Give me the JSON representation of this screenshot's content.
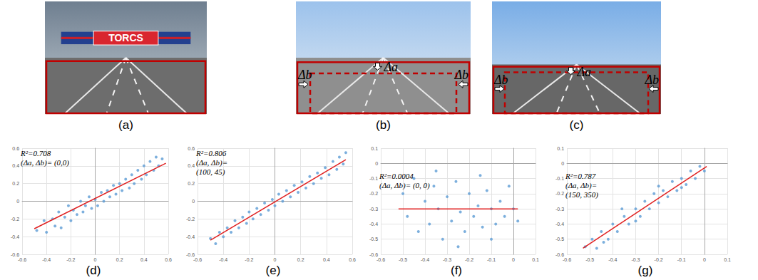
{
  "images": [
    {
      "caption": "(a)",
      "texts": [
        "TORCS"
      ]
    },
    {
      "caption": "(b)",
      "texts": [
        "Δa",
        "Δb",
        "Δb"
      ]
    },
    {
      "caption": "(c)",
      "texts": [
        "Δa",
        "Δb",
        "Δb"
      ]
    }
  ],
  "chart_data": [
    {
      "type": "scatter",
      "caption": "(d)",
      "annotations": [
        "R²=0.708",
        "(Δa, Δb)= (0,0)"
      ],
      "xlim": [
        -0.6,
        0.6
      ],
      "xticks": [
        -0.6,
        -0.4,
        -0.2,
        0,
        0.2,
        0.4,
        0.6
      ],
      "ylim": [
        -0.6,
        0.6
      ],
      "yticks": [
        -0.6,
        -0.4,
        -0.2,
        0,
        0.2,
        0.4,
        0.6
      ],
      "grid": true,
      "series": [
        {
          "type": "scatter",
          "color": "#5b9bd5",
          "marker": "circle",
          "x": [
            -0.48,
            -0.42,
            -0.4,
            -0.35,
            -0.33,
            -0.3,
            -0.28,
            -0.25,
            -0.22,
            -0.2,
            -0.18,
            -0.15,
            -0.12,
            -0.1,
            -0.08,
            -0.05,
            -0.03,
            0,
            0.02,
            0.05,
            0.07,
            0.1,
            0.12,
            0.15,
            0.17,
            0.2,
            0.22,
            0.25,
            0.28,
            0.3,
            0.32,
            0.35,
            0.38,
            0.4,
            0.42,
            0.45,
            0.48,
            0.5,
            0.52,
            0.55
          ],
          "values": [
            -0.33,
            -0.22,
            -0.35,
            -0.2,
            -0.28,
            -0.12,
            -0.3,
            -0.18,
            -0.05,
            -0.22,
            -0.1,
            -0.15,
            0,
            -0.12,
            -0.05,
            0.05,
            -0.08,
            0.02,
            -0.05,
            0.1,
            0,
            0.12,
            0.05,
            0.18,
            0.08,
            0.2,
            0.12,
            0.25,
            0.15,
            0.3,
            0.2,
            0.35,
            0.25,
            0.4,
            0.3,
            0.45,
            0.35,
            0.5,
            0.4,
            0.48
          ]
        },
        {
          "type": "line",
          "color": "#e02020",
          "line_style": "solid",
          "x": [
            -0.5,
            0.58
          ],
          "values": [
            -0.31,
            0.43
          ]
        }
      ]
    },
    {
      "type": "scatter",
      "caption": "(e)",
      "annotations": [
        "R²=0.806",
        "(Δa, Δb)=",
        "(100, 45)"
      ],
      "xlim": [
        -0.6,
        0.6
      ],
      "xticks": [
        -0.6,
        -0.4,
        -0.2,
        0,
        0.2,
        0.4,
        0.6
      ],
      "ylim": [
        -0.6,
        0.6
      ],
      "yticks": [
        -0.6,
        -0.4,
        -0.2,
        0,
        0.2,
        0.4,
        0.6
      ],
      "grid": true,
      "series": [
        {
          "type": "scatter",
          "color": "#5b9bd5",
          "marker": "circle",
          "x": [
            -0.5,
            -0.46,
            -0.43,
            -0.4,
            -0.37,
            -0.34,
            -0.31,
            -0.28,
            -0.25,
            -0.22,
            -0.2,
            -0.17,
            -0.14,
            -0.11,
            -0.08,
            -0.05,
            -0.02,
            0,
            0.03,
            0.06,
            0.09,
            0.12,
            0.15,
            0.18,
            0.21,
            0.24,
            0.27,
            0.3,
            0.33,
            0.36,
            0.39,
            0.42,
            0.45,
            0.48,
            0.5,
            0.53,
            0.55
          ],
          "values": [
            -0.42,
            -0.48,
            -0.35,
            -0.4,
            -0.3,
            -0.35,
            -0.22,
            -0.3,
            -0.18,
            -0.25,
            -0.12,
            -0.2,
            -0.08,
            -0.15,
            -0.02,
            -0.1,
            0.02,
            -0.05,
            0.08,
            0,
            0.12,
            0.05,
            0.18,
            0.1,
            0.22,
            0.15,
            0.28,
            0.2,
            0.32,
            0.26,
            0.38,
            0.3,
            0.45,
            0.36,
            0.5,
            0.42,
            0.55
          ]
        },
        {
          "type": "line",
          "color": "#e02020",
          "line_style": "solid",
          "x": [
            -0.5,
            0.55
          ],
          "values": [
            -0.44,
            0.47
          ]
        }
      ]
    },
    {
      "type": "scatter",
      "caption": "(f)",
      "annotations": [
        "R²=0.0004",
        "(Δa, Δb)= (0, 0)"
      ],
      "xlim": [
        -0.6,
        0.1
      ],
      "xticks": [
        -0.6,
        -0.5,
        -0.4,
        -0.3,
        -0.2,
        -0.1,
        0,
        0.1
      ],
      "ylim": [
        -0.6,
        0.1
      ],
      "yticks": [
        -0.6,
        -0.5,
        -0.4,
        -0.3,
        -0.2,
        -0.1,
        0,
        0.1
      ],
      "grid": true,
      "series": [
        {
          "type": "scatter",
          "color": "#5b9bd5",
          "marker": "circle",
          "x": [
            -0.5,
            -0.48,
            -0.45,
            -0.43,
            -0.4,
            -0.38,
            -0.36,
            -0.34,
            -0.32,
            -0.3,
            -0.28,
            -0.26,
            -0.24,
            -0.22,
            -0.2,
            -0.18,
            -0.16,
            -0.14,
            -0.12,
            -0.1,
            -0.08,
            -0.06,
            -0.04,
            -0.02,
            0,
            0.02,
            -0.25,
            -0.15,
            -0.35,
            -0.1
          ],
          "values": [
            -0.2,
            -0.35,
            -0.1,
            -0.45,
            -0.25,
            -0.4,
            -0.15,
            -0.3,
            -0.5,
            -0.22,
            -0.38,
            -0.12,
            -0.32,
            -0.45,
            -0.2,
            -0.35,
            -0.28,
            -0.42,
            -0.18,
            -0.3,
            -0.4,
            -0.25,
            -0.35,
            -0.15,
            -0.3,
            -0.38,
            -0.55,
            -0.08,
            -0.05,
            -0.5
          ]
        },
        {
          "type": "line",
          "color": "#e02020",
          "line_style": "solid",
          "x": [
            -0.52,
            0.02
          ],
          "values": [
            -0.3,
            -0.3
          ]
        }
      ]
    },
    {
      "type": "scatter",
      "caption": "(g)",
      "annotations": [
        "R²=0.787",
        "(Δa, Δb)=",
        "(150, 350)"
      ],
      "xlim": [
        -0.6,
        0.1
      ],
      "xticks": [
        -0.6,
        -0.5,
        -0.4,
        -0.3,
        -0.2,
        -0.1,
        0,
        0.1
      ],
      "ylim": [
        -0.6,
        0.1
      ],
      "yticks": [
        -0.6,
        -0.5,
        -0.4,
        -0.3,
        -0.2,
        -0.1,
        0,
        0.1
      ],
      "grid": true,
      "series": [
        {
          "type": "scatter",
          "color": "#5b9bd5",
          "marker": "circle",
          "x": [
            -0.52,
            -0.49,
            -0.47,
            -0.45,
            -0.42,
            -0.4,
            -0.38,
            -0.35,
            -0.33,
            -0.3,
            -0.28,
            -0.26,
            -0.24,
            -0.22,
            -0.2,
            -0.18,
            -0.16,
            -0.14,
            -0.12,
            -0.1,
            -0.08,
            -0.06,
            -0.04,
            -0.02,
            0,
            -0.3,
            -0.2,
            -0.1,
            -0.44,
            -0.36
          ],
          "values": [
            -0.55,
            -0.5,
            -0.56,
            -0.45,
            -0.5,
            -0.4,
            -0.45,
            -0.35,
            -0.4,
            -0.3,
            -0.35,
            -0.25,
            -0.3,
            -0.2,
            -0.26,
            -0.18,
            -0.22,
            -0.12,
            -0.18,
            -0.1,
            -0.14,
            -0.05,
            -0.1,
            -0.02,
            -0.05,
            -0.38,
            -0.15,
            -0.16,
            -0.52,
            -0.3
          ]
        },
        {
          "type": "line",
          "color": "#e02020",
          "line_style": "solid",
          "x": [
            -0.53,
            0.01
          ],
          "values": [
            -0.56,
            -0.02
          ]
        }
      ]
    }
  ]
}
